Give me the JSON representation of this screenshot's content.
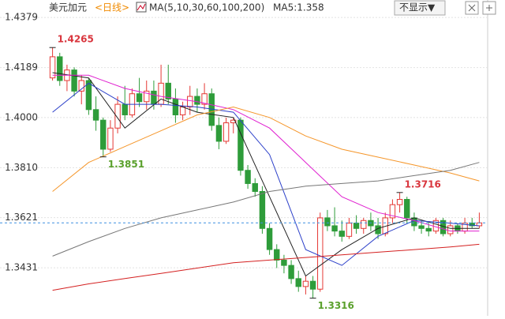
{
  "chart_data": {
    "type": "candlestick",
    "title": "美元加元",
    "period": "<日线>",
    "indicator": "MA(5,10,30,60,100,200)",
    "indicator_value": "MA5:1.358",
    "button": "不显示▼",
    "ylim": [
      1.3249,
      1.4445
    ],
    "yticks": [
      1.4379,
      1.4189,
      {
        "value": 1.4,
        "label": "1.4000"
      },
      {
        "value": 1.381,
        "label": "1.3810"
      },
      1.3621,
      1.3431
    ],
    "grid": true,
    "up_color": "#e53935",
    "down_color": "#2e9c3a",
    "current_color": "#3d8fe0",
    "open": [
      1.415,
      1.423,
      1.414,
      1.418,
      1.41,
      1.414,
      1.403,
      1.399,
      1.388,
      1.396,
      1.405,
      1.401,
      1.409,
      1.406,
      1.41,
      1.405,
      1.413,
      1.407,
      1.401,
      1.404,
      1.408,
      1.405,
      1.409,
      1.397,
      1.391,
      1.398,
      1.399,
      1.38,
      1.375,
      1.372,
      1.358,
      1.35,
      1.346,
      1.344,
      1.339,
      1.336,
      1.338,
      1.335,
      1.362,
      1.359,
      1.357,
      1.355,
      1.36,
      1.358,
      1.361,
      1.359,
      1.356,
      1.362,
      1.367,
      1.369,
      1.362,
      1.359,
      1.358,
      1.357,
      1.361,
      1.356,
      1.359,
      1.357,
      1.36,
      1.359
    ],
    "high": [
      1.4265,
      1.4245,
      1.42,
      1.419,
      1.416,
      1.415,
      1.408,
      1.4,
      1.399,
      1.408,
      1.412,
      1.411,
      1.415,
      1.414,
      1.414,
      1.42,
      1.42,
      1.411,
      1.406,
      1.412,
      1.411,
      1.413,
      1.411,
      1.4,
      1.4,
      1.4,
      1.4,
      1.382,
      1.377,
      1.374,
      1.36,
      1.352,
      1.348,
      1.346,
      1.342,
      1.34,
      1.34,
      1.364,
      1.365,
      1.366,
      1.361,
      1.362,
      1.363,
      1.362,
      1.364,
      1.362,
      1.364,
      1.369,
      1.3716,
      1.37,
      1.364,
      1.361,
      1.36,
      1.362,
      1.362,
      1.361,
      1.36,
      1.362,
      1.362,
      1.364
    ],
    "low": [
      1.414,
      1.412,
      1.41,
      1.408,
      1.405,
      1.401,
      1.395,
      1.3851,
      1.387,
      1.394,
      1.399,
      1.4,
      1.404,
      1.403,
      1.403,
      1.404,
      1.405,
      1.398,
      1.399,
      1.401,
      1.402,
      1.403,
      1.395,
      1.388,
      1.39,
      1.394,
      1.378,
      1.373,
      1.37,
      1.356,
      1.348,
      1.343,
      1.341,
      1.337,
      1.334,
      1.333,
      1.3316,
      1.334,
      1.357,
      1.355,
      1.353,
      1.354,
      1.356,
      1.356,
      1.357,
      1.354,
      1.355,
      1.36,
      1.364,
      1.36,
      1.357,
      1.356,
      1.355,
      1.356,
      1.355,
      1.355,
      1.356,
      1.356,
      1.358,
      1.358
    ],
    "close": [
      1.423,
      1.414,
      1.418,
      1.41,
      1.414,
      1.403,
      1.399,
      1.388,
      1.396,
      1.405,
      1.401,
      1.409,
      1.406,
      1.41,
      1.405,
      1.413,
      1.407,
      1.401,
      1.404,
      1.408,
      1.405,
      1.409,
      1.397,
      1.391,
      1.398,
      1.399,
      1.38,
      1.375,
      1.372,
      1.358,
      1.35,
      1.346,
      1.344,
      1.339,
      1.336,
      1.338,
      1.335,
      1.362,
      1.359,
      1.357,
      1.355,
      1.36,
      1.358,
      1.361,
      1.359,
      1.356,
      1.362,
      1.367,
      1.369,
      1.362,
      1.359,
      1.358,
      1.357,
      1.361,
      1.356,
      1.359,
      1.357,
      1.36,
      1.359,
      1.3601
    ],
    "ma_series": [
      {
        "color": "#222222",
        "x": [
          0,
          5,
          10,
          15,
          20,
          25,
          30,
          35,
          40,
          45,
          50,
          55,
          59
        ],
        "values": [
          1.417,
          1.415,
          1.396,
          1.407,
          1.402,
          1.4,
          1.37,
          1.34,
          1.35,
          1.358,
          1.362,
          1.358,
          1.358
        ]
      },
      {
        "color": "#2b3fc9",
        "x": [
          0,
          5,
          10,
          15,
          20,
          25,
          30,
          35,
          40,
          45,
          50,
          55,
          59
        ],
        "values": [
          1.402,
          1.413,
          1.405,
          1.405,
          1.404,
          1.402,
          1.386,
          1.35,
          1.344,
          1.355,
          1.361,
          1.36,
          1.359
        ]
      },
      {
        "color": "#e020d0",
        "x": [
          0,
          5,
          10,
          15,
          20,
          25,
          30,
          35,
          40,
          45,
          50,
          55,
          59
        ],
        "values": [
          1.416,
          1.416,
          1.411,
          1.408,
          1.406,
          1.403,
          1.396,
          1.383,
          1.37,
          1.364,
          1.361,
          1.357,
          1.357
        ]
      },
      {
        "color": "#f5962a",
        "x": [
          0,
          5,
          10,
          15,
          20,
          25,
          30,
          35,
          40,
          45,
          50,
          55,
          59
        ],
        "values": [
          1.372,
          1.383,
          1.389,
          1.395,
          1.401,
          1.404,
          1.4,
          1.393,
          1.388,
          1.385,
          1.382,
          1.379,
          1.376
        ]
      },
      {
        "color": "#777777",
        "x": [
          0,
          5,
          10,
          15,
          20,
          25,
          30,
          35,
          40,
          45,
          50,
          55,
          59
        ],
        "values": [
          1.3475,
          1.353,
          1.358,
          1.362,
          1.365,
          1.368,
          1.372,
          1.374,
          1.375,
          1.376,
          1.378,
          1.38,
          1.383
        ]
      },
      {
        "color": "#d42020",
        "x": [
          0,
          5,
          10,
          15,
          20,
          25,
          30,
          35,
          40,
          45,
          50,
          55,
          59
        ],
        "values": [
          1.3346,
          1.337,
          1.339,
          1.341,
          1.343,
          1.345,
          1.346,
          1.347,
          1.348,
          1.349,
          1.35,
          1.351,
          1.352
        ]
      }
    ],
    "annotations": [
      {
        "value": 1.4265,
        "field": "high",
        "color": "#d9363e"
      },
      {
        "value": 1.3851,
        "field": "low",
        "color": "#5aa02c"
      },
      {
        "value": 1.3716,
        "field": "high",
        "color": "#d9363e"
      },
      {
        "value": 1.3316,
        "field": "low",
        "color": "#5aa02c"
      }
    ]
  }
}
